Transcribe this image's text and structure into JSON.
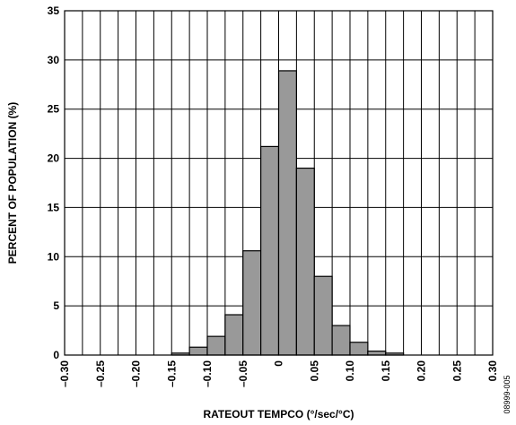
{
  "chart_data": {
    "type": "bar",
    "xlabel": "RATEOUT TEMPCO (°/sec/°C)",
    "ylabel": "PERCENT OF POPULATION (%)",
    "xlim": [
      -0.3,
      0.3
    ],
    "ylim": [
      0,
      35
    ],
    "bin_width": 0.025,
    "x_ticks": [
      "–0.30",
      "–0.25",
      "–0.20",
      "–0.15",
      "–0.10",
      "–0.05",
      "0",
      "0.05",
      "0.10",
      "0.15",
      "0.20",
      "0.25",
      "0.30"
    ],
    "y_ticks": [
      "0",
      "5",
      "10",
      "15",
      "20",
      "25",
      "30",
      "35"
    ],
    "bins": [
      {
        "start": -0.15,
        "value": 0.2
      },
      {
        "start": -0.125,
        "value": 0.8
      },
      {
        "start": -0.1,
        "value": 1.9
      },
      {
        "start": -0.075,
        "value": 4.1
      },
      {
        "start": -0.05,
        "value": 10.6
      },
      {
        "start": -0.025,
        "value": 21.2
      },
      {
        "start": 0.0,
        "value": 28.9
      },
      {
        "start": 0.025,
        "value": 19.0
      },
      {
        "start": 0.05,
        "value": 8.0
      },
      {
        "start": 0.075,
        "value": 3.0
      },
      {
        "start": 0.1,
        "value": 1.3
      },
      {
        "start": 0.125,
        "value": 0.4
      },
      {
        "start": 0.15,
        "value": 0.2
      }
    ],
    "grid": true,
    "bar_color": "#999999"
  },
  "side_code": "08999-005"
}
